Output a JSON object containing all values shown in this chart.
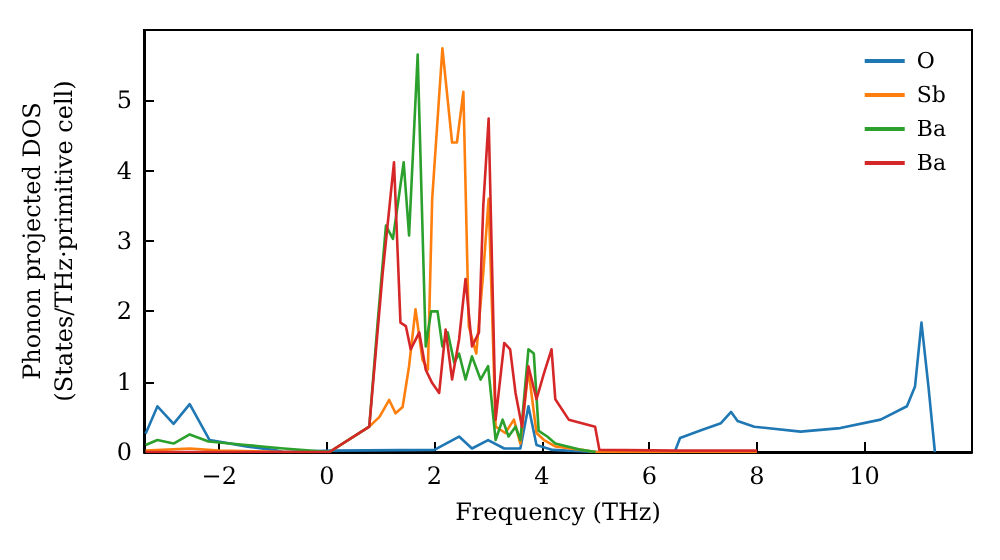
{
  "chart_data": {
    "type": "line",
    "xlabel": "Frequency (THz)",
    "ylabel": "Phonon projected DOS\n(States/THz·primitive cell)",
    "xlim": [
      -3.4,
      12
    ],
    "ylim": [
      0,
      6
    ],
    "xticks": [
      -2,
      0,
      2,
      4,
      6,
      8,
      10
    ],
    "yticks": [
      0,
      1,
      2,
      3,
      4,
      5
    ],
    "grid": false,
    "legend": "top right",
    "marker": "none",
    "line_style": "solid",
    "series": [
      {
        "name": "O",
        "color": "#1f77b4",
        "x": [
          -3.37,
          -3.15,
          -2.85,
          -2.55,
          -2.18,
          -1.5,
          -1.0,
          -0.8,
          0.1,
          2.0,
          2.46,
          2.7,
          3.0,
          3.3,
          3.6,
          3.75,
          3.9,
          4.2,
          5.0,
          6.4,
          6.47,
          6.57,
          6.96,
          7.33,
          7.52,
          7.64,
          7.95,
          8.81,
          9.55,
          10.3,
          10.79,
          10.94,
          11.06,
          11.19,
          11.31
        ],
        "values": [
          0.26,
          0.65,
          0.4,
          0.68,
          0.17,
          0.08,
          0.03,
          0,
          0.02,
          0.03,
          0.22,
          0.05,
          0.17,
          0.05,
          0.05,
          0.65,
          0.1,
          0.03,
          0,
          0,
          0,
          0.2,
          0.31,
          0.41,
          0.57,
          0.44,
          0.36,
          0.29,
          0.34,
          0.46,
          0.65,
          0.93,
          1.84,
          0.93,
          0
        ]
      },
      {
        "name": "Sb",
        "color": "#ff7f0e",
        "x": [
          -3.37,
          -2.55,
          -2.0,
          -0.8,
          0.05,
          0.79,
          0.98,
          1.16,
          1.28,
          1.41,
          1.53,
          1.65,
          1.78,
          1.88,
          1.96,
          2.15,
          2.33,
          2.42,
          2.54,
          2.64,
          2.78,
          2.91,
          3.01,
          3.14,
          3.32,
          3.48,
          3.6,
          3.75,
          3.9,
          4.04,
          4.25,
          4.74,
          5.0,
          8.0
        ],
        "values": [
          0.02,
          0.05,
          0.02,
          0,
          0,
          0.36,
          0.5,
          0.74,
          0.55,
          0.64,
          1.22,
          2.03,
          1.31,
          1.17,
          3.6,
          5.74,
          4.4,
          4.4,
          5.12,
          1.79,
          1.4,
          2.55,
          3.6,
          0.36,
          0.27,
          0.46,
          0.12,
          1.17,
          0.27,
          0.17,
          0.08,
          0.03,
          0,
          0
        ]
      },
      {
        "name": "Ba",
        "color": "#2ca02c",
        "x": [
          -3.37,
          -3.15,
          -2.85,
          -2.55,
          -2.2,
          -1.5,
          -0.8,
          0.05,
          0.79,
          0.94,
          1.1,
          1.23,
          1.43,
          1.53,
          1.69,
          1.84,
          1.94,
          2.06,
          2.15,
          2.25,
          2.37,
          2.46,
          2.58,
          2.7,
          2.86,
          3.0,
          3.14,
          3.27,
          3.38,
          3.51,
          3.6,
          3.75,
          3.85,
          3.94,
          4.1,
          4.25,
          4.74,
          5.0
        ],
        "values": [
          0.1,
          0.17,
          0.12,
          0.25,
          0.15,
          0.1,
          0.05,
          0,
          0.36,
          1.79,
          3.22,
          3.03,
          4.12,
          3.08,
          5.65,
          1.5,
          2.0,
          2.0,
          1.5,
          1.7,
          1.27,
          1.4,
          1.03,
          1.36,
          1.03,
          1.22,
          0.17,
          0.46,
          0.22,
          0.36,
          0.17,
          1.46,
          1.4,
          0.3,
          0.22,
          0.12,
          0.03,
          0
        ]
      },
      {
        "name": "Ba",
        "color": "#d62728",
        "x": [
          -3.37,
          -0.8,
          0.05,
          0.79,
          1.04,
          1.25,
          1.37,
          1.47,
          1.56,
          1.72,
          1.84,
          1.96,
          2.09,
          2.21,
          2.33,
          2.46,
          2.58,
          2.7,
          2.83,
          2.91,
          3.01,
          3.14,
          3.3,
          3.41,
          3.51,
          3.63,
          3.75,
          3.9,
          4.04,
          4.18,
          4.25,
          4.5,
          4.99,
          5.07,
          6.5,
          8.0
        ],
        "values": [
          0,
          0,
          0,
          0.36,
          2.55,
          4.12,
          1.84,
          1.79,
          1.46,
          1.7,
          1.17,
          0.98,
          0.84,
          1.74,
          1.03,
          1.6,
          2.46,
          1.5,
          1.7,
          3.5,
          4.74,
          0.46,
          1.55,
          1.46,
          0.84,
          0.36,
          1.22,
          0.75,
          1.12,
          1.46,
          0.75,
          0.46,
          0.36,
          0.03,
          0.02,
          0.02
        ]
      }
    ]
  }
}
